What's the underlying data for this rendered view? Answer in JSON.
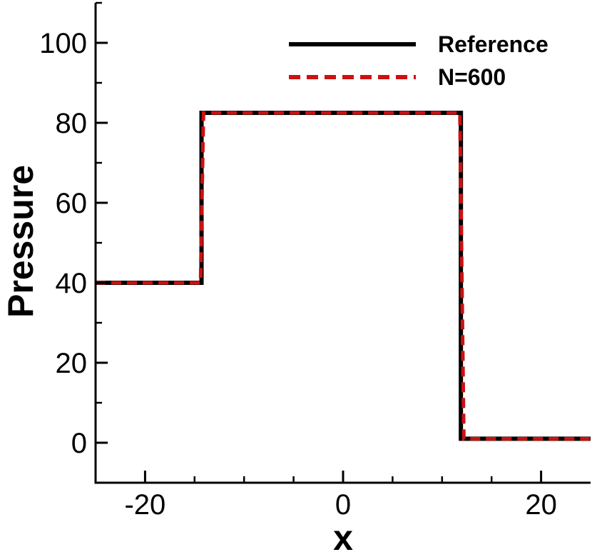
{
  "chart_data": {
    "type": "line",
    "title": "",
    "xlabel": "x",
    "ylabel": "Pressure",
    "xlim": [
      -25,
      25
    ],
    "ylim": [
      -10,
      110
    ],
    "x_ticks": [
      -20,
      0,
      20
    ],
    "x_tick_labels": [
      "-20",
      "0",
      "20"
    ],
    "x_minor_ticks": [
      -15,
      -10,
      -5,
      5,
      10,
      15
    ],
    "y_ticks": [
      0,
      20,
      40,
      60,
      80,
      100
    ],
    "y_tick_labels": [
      "0",
      "20",
      "40",
      "60",
      "80",
      "100"
    ],
    "y_minor_ticks": [
      -10,
      10,
      30,
      50,
      70,
      90,
      110
    ],
    "grid": false,
    "legend_position": "top-right",
    "series": [
      {
        "name": "Reference",
        "color": "#000000",
        "style": "solid",
        "x": [
          -25,
          -14.3,
          -14.3,
          11.9,
          11.9,
          25
        ],
        "y": [
          40,
          40,
          82.5,
          82.5,
          1,
          1
        ]
      },
      {
        "name": "N=600",
        "color": "#cc1111",
        "style": "dashed",
        "x": [
          -25,
          -14.4,
          -14.1,
          11.8,
          12.2,
          25
        ],
        "y": [
          40,
          40,
          82.5,
          82.5,
          1,
          1
        ]
      }
    ]
  }
}
